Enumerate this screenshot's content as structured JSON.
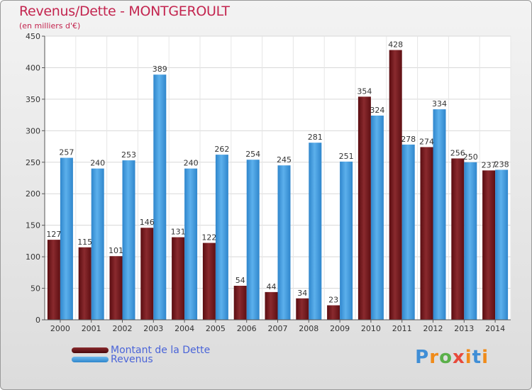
{
  "title": "Revenus/Dette - MONTGEROULT",
  "subtitle": "(en milliers d'€)",
  "legend": {
    "dette_label": "Montant de la Dette",
    "revenus_label": "Revenus"
  },
  "logo": {
    "letters": [
      "P",
      "r",
      "o",
      "x",
      "i",
      "t",
      "i"
    ]
  },
  "colors": {
    "dette": "#6e1318",
    "revenus": "#3a93d6",
    "title": "#c3254f",
    "legend_text": "#4a64d8"
  },
  "chart_data": {
    "type": "bar",
    "categories": [
      "2000",
      "2001",
      "2002",
      "2003",
      "2004",
      "2005",
      "2006",
      "2007",
      "2008",
      "2009",
      "2010",
      "2011",
      "2012",
      "2013",
      "2014"
    ],
    "series": [
      {
        "name": "Montant de la Dette",
        "values": [
          127,
          115,
          101,
          146,
          131,
          122,
          54,
          44,
          34,
          23,
          354,
          428,
          274,
          256,
          237
        ]
      },
      {
        "name": "Revenus",
        "values": [
          257,
          240,
          253,
          389,
          240,
          262,
          254,
          245,
          281,
          251,
          324,
          278,
          334,
          250,
          238
        ]
      }
    ],
    "ylim": [
      0,
      450
    ],
    "yticks": [
      0,
      50,
      100,
      150,
      200,
      250,
      300,
      350,
      400,
      450
    ],
    "grid": true,
    "legend_position": "bottom-left"
  }
}
